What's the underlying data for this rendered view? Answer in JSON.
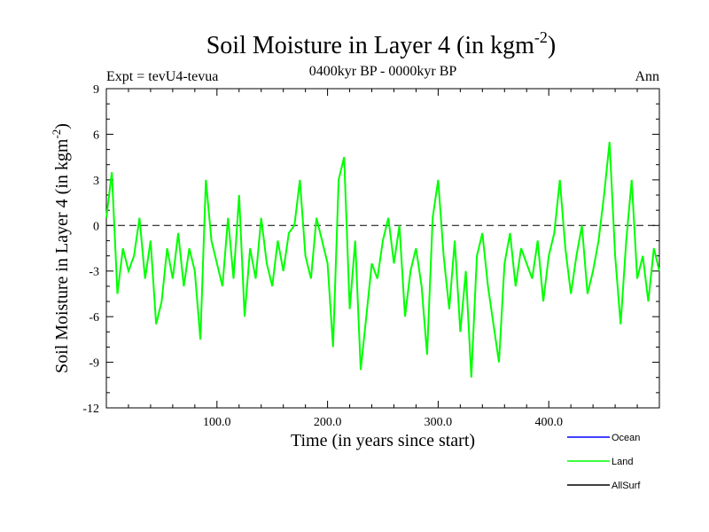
{
  "header": {
    "title_main": "Soil Moisture in Layer 4 (in kgm",
    "title_sup": "-2",
    "title_close": ")",
    "expt": "Expt = tevU4-tevua",
    "period": "0400kyr BP - 0000kyr BP",
    "season": "Ann"
  },
  "chart_data": {
    "type": "line",
    "xlabel": "Time (in years since start)",
    "ylabel_main": "Soil Moisture in Layer 4 (in kgm",
    "ylabel_sup": "-2",
    "ylabel_close": ")",
    "xlim": [
      0,
      500
    ],
    "ylim": [
      -12,
      9
    ],
    "x_ticks": [
      100,
      200,
      300,
      400
    ],
    "x_tick_labels": [
      "100.0",
      "200.0",
      "300.0",
      "400.0"
    ],
    "y_ticks": [
      -12,
      -9,
      -6,
      -3,
      0,
      3,
      6,
      9
    ],
    "y_tick_labels": [
      "-12",
      "-9",
      "-6",
      "-3",
      "0",
      "3",
      "6",
      "9"
    ],
    "zero_line": 0,
    "legend": [
      {
        "label": "Ocean",
        "color": "#0000ff"
      },
      {
        "label": "Land",
        "color": "#00ff00"
      },
      {
        "label": "AllSurf",
        "color": "#000000"
      }
    ],
    "series": [
      {
        "name": "Land",
        "color": "#00ff00",
        "x": [
          0,
          5,
          10,
          15,
          20,
          25,
          30,
          35,
          40,
          45,
          50,
          55,
          60,
          65,
          70,
          75,
          80,
          85,
          90,
          95,
          100,
          105,
          110,
          115,
          120,
          125,
          130,
          135,
          140,
          145,
          150,
          155,
          160,
          165,
          170,
          175,
          180,
          185,
          190,
          195,
          200,
          205,
          210,
          215,
          220,
          225,
          230,
          235,
          240,
          245,
          250,
          255,
          260,
          265,
          270,
          275,
          280,
          285,
          290,
          295,
          300,
          305,
          310,
          315,
          320,
          325,
          330,
          335,
          340,
          345,
          350,
          355,
          360,
          365,
          370,
          375,
          380,
          385,
          390,
          395,
          400,
          405,
          410,
          415,
          420,
          425,
          430,
          435,
          440,
          445,
          450,
          455,
          460,
          465,
          470,
          475,
          480,
          485,
          490,
          495,
          500
        ],
        "y": [
          0.5,
          3.5,
          -4.5,
          -1.5,
          -3.0,
          -2.0,
          0.5,
          -3.5,
          -1.0,
          -6.5,
          -5.0,
          -1.5,
          -3.5,
          -0.5,
          -4.0,
          -1.5,
          -3.0,
          -7.5,
          3.0,
          -1.0,
          -2.5,
          -4.0,
          0.5,
          -3.5,
          2.0,
          -6.0,
          -1.5,
          -3.5,
          0.5,
          -2.5,
          -4.0,
          -1.0,
          -3.0,
          -0.5,
          0.0,
          3.0,
          -2.0,
          -3.5,
          0.5,
          -1.0,
          -2.5,
          -8.0,
          3.0,
          4.5,
          -5.5,
          -1.0,
          -9.5,
          -6.0,
          -2.5,
          -3.5,
          -1.0,
          0.5,
          -2.5,
          0.0,
          -6.0,
          -3.0,
          -1.5,
          -4.0,
          -8.5,
          0.5,
          3.0,
          -2.0,
          -5.5,
          -1.0,
          -7.0,
          -3.0,
          -10.0,
          -2.0,
          -0.5,
          -4.0,
          -6.5,
          -9.0,
          -2.5,
          -0.5,
          -4.0,
          -1.5,
          -2.5,
          -3.5,
          -1.0,
          -5.0,
          -2.0,
          -0.5,
          3.0,
          -1.5,
          -4.5,
          -2.0,
          0.0,
          -4.5,
          -3.0,
          -1.0,
          2.0,
          5.5,
          -2.0,
          -6.5,
          -1.0,
          3.0,
          -3.5,
          -2.0,
          -5.0,
          -1.5,
          -3.0
        ]
      }
    ]
  }
}
